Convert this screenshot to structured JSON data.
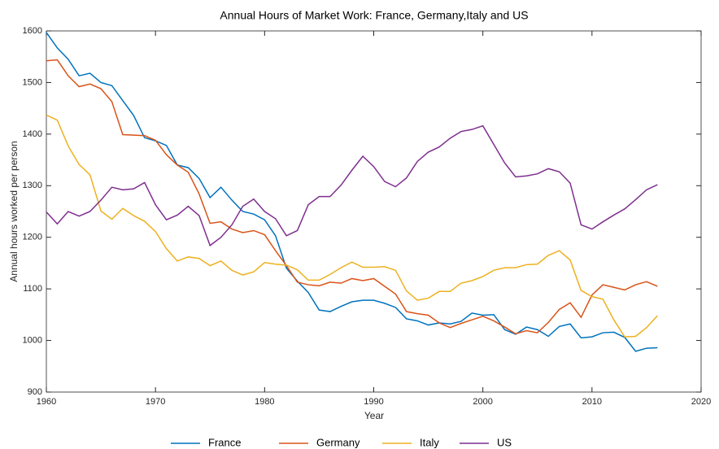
{
  "chart_data": {
    "type": "line",
    "title": "Annual Hours of Market Work: France, Germany,Italy and US",
    "x_label": "Year",
    "y_label": "Annual hours worked per person",
    "x": [
      1960,
      1961,
      1962,
      1963,
      1964,
      1965,
      1966,
      1967,
      1968,
      1969,
      1970,
      1971,
      1972,
      1973,
      1974,
      1975,
      1976,
      1977,
      1978,
      1979,
      1980,
      1981,
      1982,
      1983,
      1984,
      1985,
      1986,
      1987,
      1988,
      1989,
      1990,
      1991,
      1992,
      1993,
      1994,
      1995,
      1996,
      1997,
      1998,
      1999,
      2000,
      2001,
      2002,
      2003,
      2004,
      2005,
      2006,
      2007,
      2008,
      2009,
      2010,
      2011,
      2012,
      2013,
      2014,
      2015,
      2016
    ],
    "series": [
      {
        "name": "France",
        "color": "#0072BD",
        "values": [
          1597,
          1567,
          1545,
          1513,
          1518,
          1500,
          1494,
          1465,
          1436,
          1393,
          1387,
          1378,
          1340,
          1335,
          1314,
          1277,
          1297,
          1272,
          1250,
          1245,
          1234,
          1203,
          1140,
          1115,
          1093,
          1059,
          1056,
          1066,
          1075,
          1078,
          1078,
          1072,
          1064,
          1042,
          1038,
          1030,
          1034,
          1032,
          1037,
          1053,
          1049,
          1050,
          1021,
          1012,
          1026,
          1021,
          1008,
          1027,
          1032,
          1005,
          1007,
          1015,
          1016,
          1006,
          979,
          985,
          986
        ]
      },
      {
        "name": "Germany",
        "color": "#D95319",
        "values": [
          1542,
          1544,
          1513,
          1492,
          1497,
          1488,
          1463,
          1399,
          1398,
          1397,
          1388,
          1360,
          1340,
          1326,
          1284,
          1227,
          1230,
          1216,
          1209,
          1213,
          1205,
          1174,
          1145,
          1113,
          1108,
          1106,
          1113,
          1111,
          1120,
          1116,
          1120,
          1105,
          1090,
          1056,
          1052,
          1049,
          1034,
          1025,
          1033,
          1040,
          1047,
          1038,
          1026,
          1013,
          1019,
          1015,
          1035,
          1060,
          1073,
          1045,
          1088,
          1108,
          1103,
          1098,
          1108,
          1114,
          1105
        ]
      },
      {
        "name": "Italy",
        "color": "#EDB120",
        "values": [
          1437,
          1427,
          1377,
          1341,
          1321,
          1251,
          1235,
          1256,
          1242,
          1231,
          1211,
          1178,
          1154,
          1162,
          1159,
          1145,
          1154,
          1136,
          1127,
          1133,
          1151,
          1148,
          1146,
          1137,
          1117,
          1117,
          1128,
          1141,
          1152,
          1142,
          1142,
          1143,
          1136,
          1096,
          1078,
          1082,
          1095,
          1095,
          1111,
          1116,
          1124,
          1136,
          1141,
          1141,
          1147,
          1148,
          1165,
          1174,
          1156,
          1097,
          1085,
          1080,
          1040,
          1007,
          1008,
          1025,
          1048
        ]
      },
      {
        "name": "US",
        "color": "#7E2F8E",
        "values": [
          1249,
          1226,
          1250,
          1241,
          1250,
          1272,
          1297,
          1292,
          1294,
          1306,
          1263,
          1234,
          1243,
          1260,
          1242,
          1184,
          1200,
          1224,
          1260,
          1274,
          1250,
          1236,
          1203,
          1213,
          1263,
          1279,
          1279,
          1301,
          1330,
          1357,
          1337,
          1308,
          1298,
          1315,
          1347,
          1365,
          1375,
          1392,
          1405,
          1409,
          1416,
          1380,
          1344,
          1317,
          1319,
          1323,
          1333,
          1327,
          1305,
          1224,
          1216,
          1230,
          1243,
          1255,
          1273,
          1292,
          1302
        ]
      }
    ],
    "xlim": [
      1960,
      2020
    ],
    "xticks": [
      1960,
      1970,
      1980,
      1990,
      2000,
      2010,
      2020
    ],
    "ylim": [
      900,
      1600
    ],
    "yticks": [
      900,
      1000,
      1100,
      1200,
      1300,
      1400,
      1500,
      1600
    ],
    "grid": false,
    "legend": "bottom"
  }
}
